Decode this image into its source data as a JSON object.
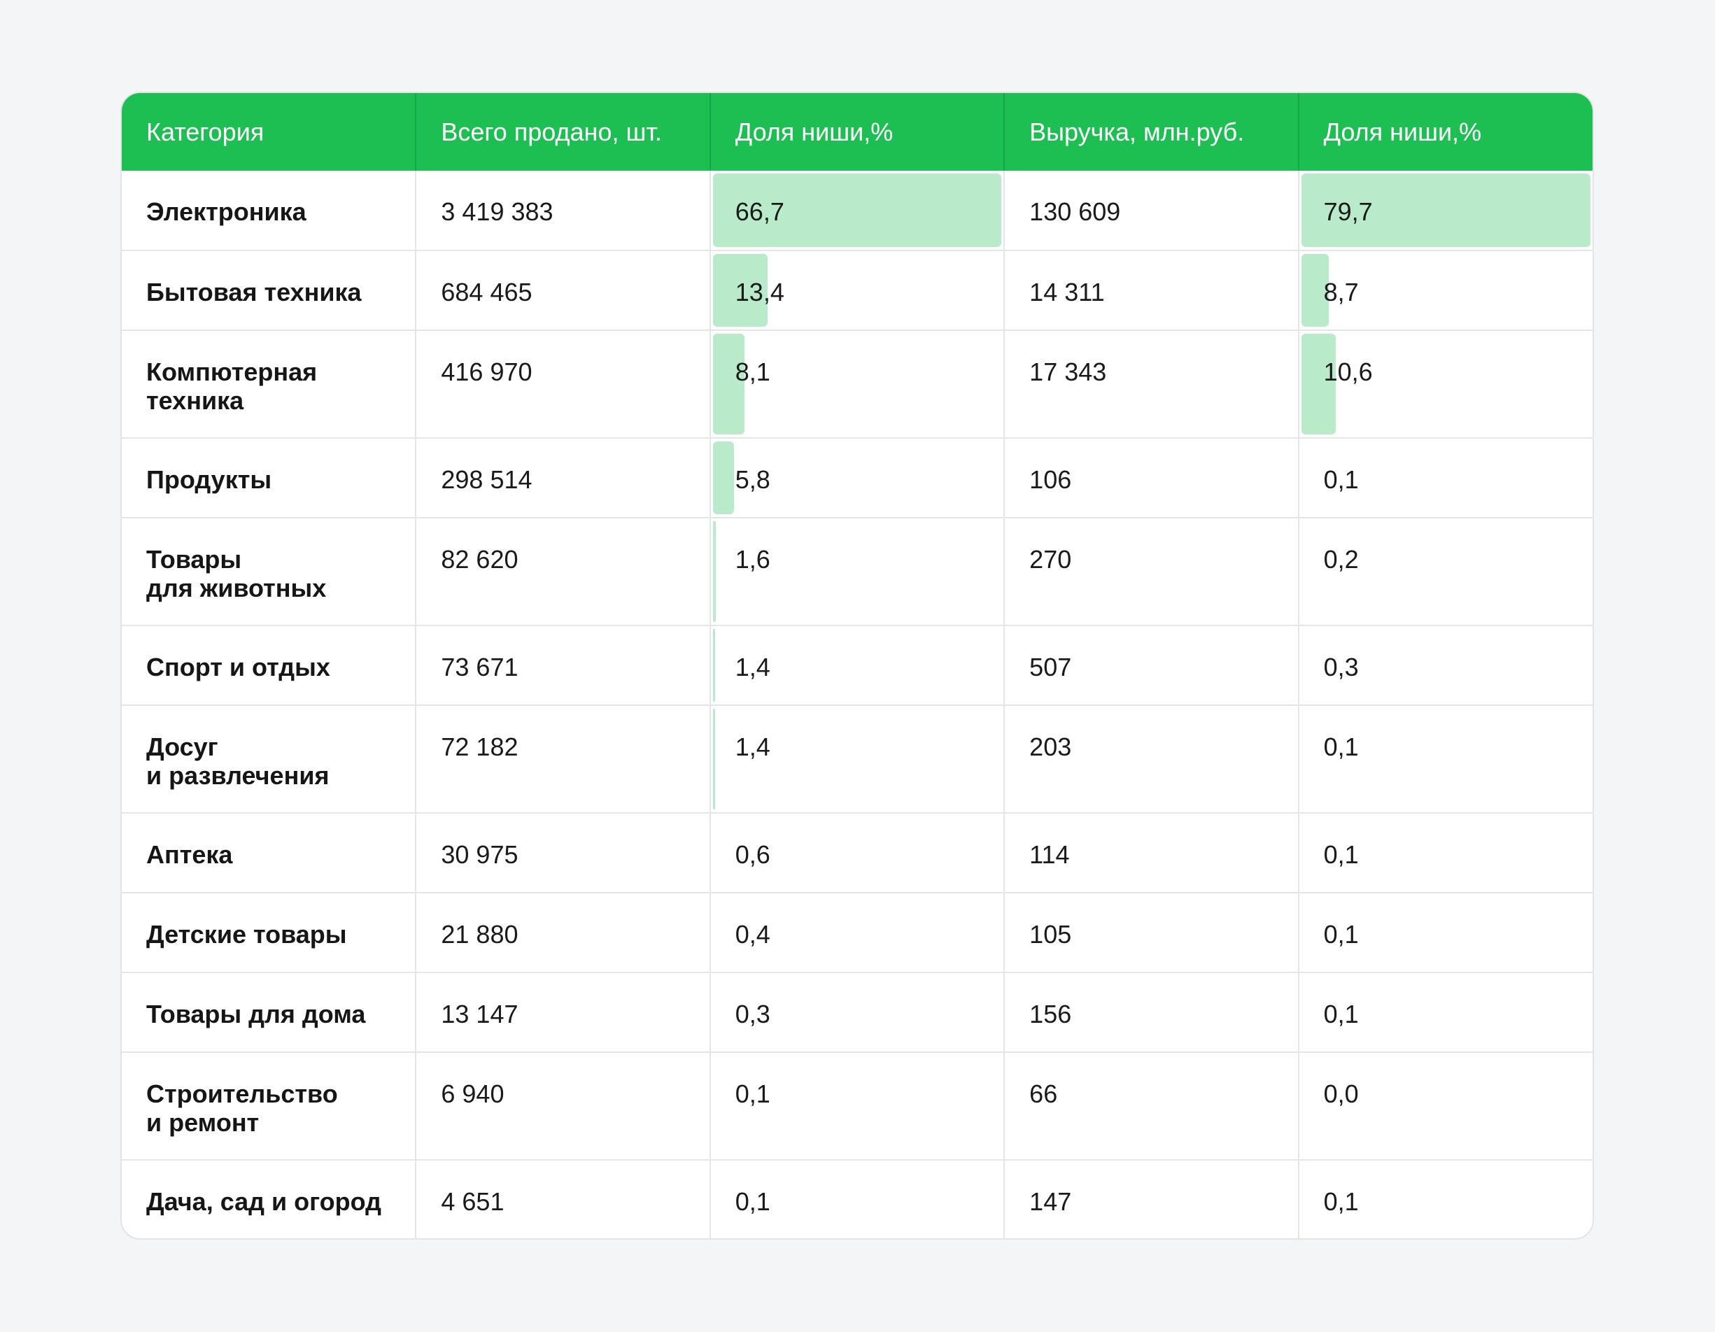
{
  "chart_data": {
    "type": "table",
    "columns": [
      "Категория",
      "Всего продано, шт.",
      "Доля ниши,%",
      "Выручка, млн.руб.",
      "Доля ниши,%"
    ],
    "rows": [
      {
        "category": "Электроника",
        "sold": "3 419 383",
        "share_sold": "66,7",
        "share_sold_value": 66.7,
        "revenue": "130 609",
        "share_revenue": "79,7",
        "share_revenue_value": 79.7
      },
      {
        "category": "Бытовая техника",
        "sold": "684 465",
        "share_sold": "13,4",
        "share_sold_value": 13.4,
        "revenue": "14 311",
        "share_revenue": "8,7",
        "share_revenue_value": 8.7
      },
      {
        "category": "Компютерная\nтехника",
        "sold": "416 970",
        "share_sold": "8,1",
        "share_sold_value": 8.1,
        "revenue": "17 343",
        "share_revenue": "10,6",
        "share_revenue_value": 10.6
      },
      {
        "category": "Продукты",
        "sold": "298 514",
        "share_sold": "5,8",
        "share_sold_value": 5.8,
        "revenue": "106",
        "share_revenue": "0,1",
        "share_revenue_value": 0.1
      },
      {
        "category": "Товары\nдля животных",
        "sold": "82 620",
        "share_sold": "1,6",
        "share_sold_value": 1.6,
        "revenue": "270",
        "share_revenue": "0,2",
        "share_revenue_value": 0.2
      },
      {
        "category": "Спорт и отдых",
        "sold": "73 671",
        "share_sold": "1,4",
        "share_sold_value": 1.4,
        "revenue": "507",
        "share_revenue": "0,3",
        "share_revenue_value": 0.3
      },
      {
        "category": "Досуг\nи развлечения",
        "sold": "72 182",
        "share_sold": "1,4",
        "share_sold_value": 1.4,
        "revenue": "203",
        "share_revenue": "0,1",
        "share_revenue_value": 0.1
      },
      {
        "category": "Аптека",
        "sold": "30 975",
        "share_sold": "0,6",
        "share_sold_value": 0.6,
        "revenue": "114",
        "share_revenue": "0,1",
        "share_revenue_value": 0.1
      },
      {
        "category": "Детские товары",
        "sold": "21 880",
        "share_sold": "0,4",
        "share_sold_value": 0.4,
        "revenue": "105",
        "share_revenue": "0,1",
        "share_revenue_value": 0.1
      },
      {
        "category": "Товары для дома",
        "sold": "13 147",
        "share_sold": "0,3",
        "share_sold_value": 0.3,
        "revenue": "156",
        "share_revenue": "0,1",
        "share_revenue_value": 0.1
      },
      {
        "category": "Строительство\nи ремонт",
        "sold": "6 940",
        "share_sold": "0,1",
        "share_sold_value": 0.1,
        "revenue": "66",
        "share_revenue": "0,0",
        "share_revenue_value": 0.0
      },
      {
        "category": "Дача, сад и огород",
        "sold": "4 651",
        "share_sold": "0,1",
        "share_sold_value": 0.1,
        "revenue": "147",
        "share_revenue": "0,1",
        "share_revenue_value": 0.1
      }
    ],
    "bar_scale_max_sold": 66.7,
    "bar_scale_max_revenue": 79.7,
    "colors": {
      "header_bg": "#1dbf53",
      "header_text": "#ffffff",
      "bar": "#b9ebcb",
      "grid": "#e4e5e7",
      "page_bg": "#f4f5f7"
    }
  }
}
